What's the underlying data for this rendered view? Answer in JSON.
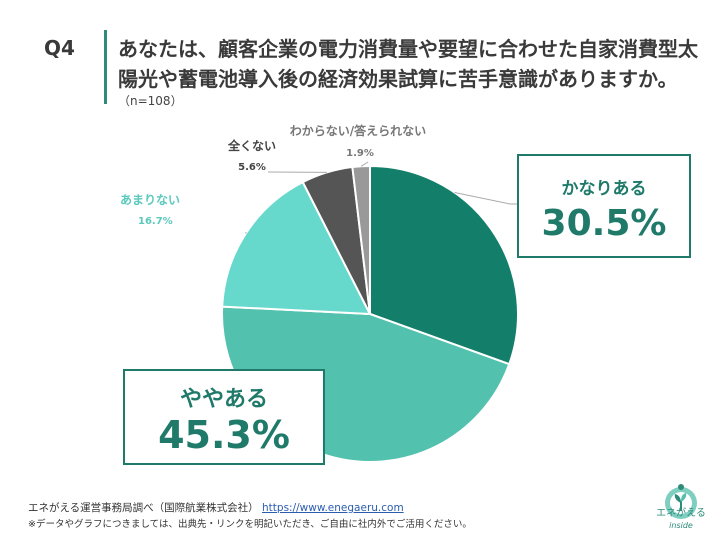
{
  "question": {
    "number": "Q4",
    "title": "あなたは、顧客企業の電力消費量や要望に合わせた自家消費型太陽光や蓄電池導入後の経済効果試算に苦手意識がありますか。",
    "sample": "（n=108）"
  },
  "chart_data": {
    "type": "pie",
    "title": "",
    "slices": [
      {
        "label": "かなりある",
        "value": 30.5,
        "display": "30.5%",
        "color": "#137f6b"
      },
      {
        "label": "ややある",
        "value": 45.3,
        "display": "45.3%",
        "color": "#52c1ad"
      },
      {
        "label": "あまりない",
        "value": 16.7,
        "display": "16.7%",
        "color": "#66d8cc"
      },
      {
        "label": "全くない",
        "value": 5.6,
        "display": "5.6%",
        "color": "#555555"
      },
      {
        "label": "わからない/答えられない",
        "value": 1.9,
        "display": "1.9%",
        "color": "#999999"
      }
    ],
    "start": "12 o'clock",
    "direction": "clockwise"
  },
  "footer": {
    "source_prefix": "エネがえる運営事務局調べ（国際航業株式会社）",
    "url": "https://www.enegaeru.com",
    "note": "※データやグラフにつきましては、出典先・リンクを明記いただき、ご自由に社内外でご活用ください。"
  },
  "logo": {
    "line1": "エネがえる",
    "line2": "inside",
    "icon": "globe-sprout-icon"
  }
}
